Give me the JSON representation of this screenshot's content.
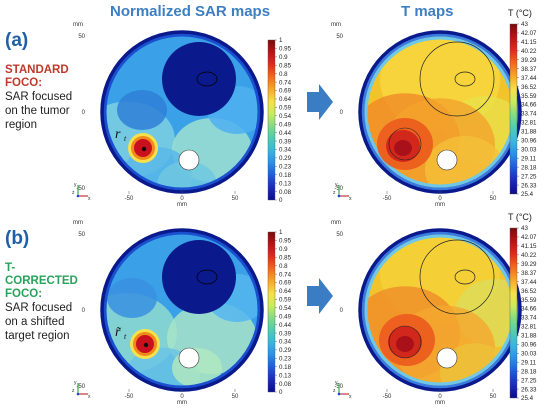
{
  "headers": {
    "sar": "Normalized SAR maps",
    "t": "T maps"
  },
  "panels": [
    {
      "letter": "(a)",
      "caption_title_lines": [
        "STANDARD",
        "FOCO:"
      ],
      "caption_title_color": "#c0392b",
      "caption_body_lines": [
        "SAR focused",
        "on the tumor",
        "region"
      ],
      "target_label": "r",
      "target_sub": "t"
    },
    {
      "letter": "(b)",
      "caption_title_lines": [
        "T-CORRECTED",
        "FOCO:"
      ],
      "caption_title_color": "#27a35a",
      "caption_body_lines": [
        "SAR focused",
        "on a shifted",
        "target region"
      ],
      "target_label": "r̃",
      "target_sub": "t"
    }
  ],
  "axes": {
    "x_ticks": [
      "-50",
      "0",
      "50"
    ],
    "y_ticks": [
      "50",
      "0",
      "-50"
    ],
    "unit": "mm",
    "triad_y": "y",
    "triad_z": "z",
    "triad_x": "x"
  },
  "colorbar_sar": {
    "labels": [
      "1",
      "0.95",
      "0.9",
      "0.85",
      "0.8",
      "0.74",
      "0.69",
      "0.64",
      "0.59",
      "0.54",
      "0.49",
      "0.44",
      "0.39",
      "0.34",
      "0.29",
      "0.23",
      "0.18",
      "0.13",
      "0.08",
      "0"
    ]
  },
  "colorbar_t": {
    "title": "T (°C)",
    "labels": [
      "43",
      "42.07",
      "41.15",
      "40.22",
      "39.29",
      "38.37",
      "37.44",
      "36.52",
      "35.59",
      "34.66",
      "33.74",
      "32.81",
      "31.88",
      "30.96",
      "30.03",
      "29.11",
      "28.18",
      "27.25",
      "26.33",
      "25.4"
    ]
  },
  "colors": {
    "header": "#3d7fc2",
    "arrow": "#3b7dc4",
    "dark_blue": "#0a1a8c",
    "hot_red": "#c8101e"
  }
}
